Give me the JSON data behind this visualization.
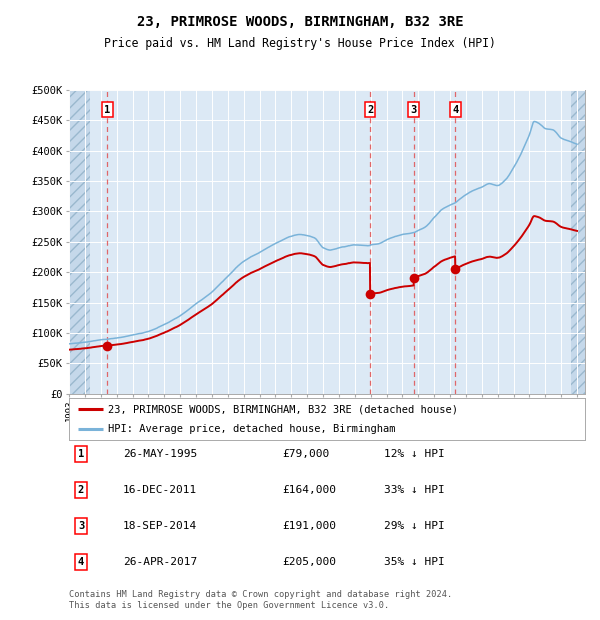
{
  "title": "23, PRIMROSE WOODS, BIRMINGHAM, B32 3RE",
  "subtitle": "Price paid vs. HM Land Registry's House Price Index (HPI)",
  "plot_bg_color": "#dce9f5",
  "hpi_line_color": "#7ab3d9",
  "price_line_color": "#cc0000",
  "marker_color": "#cc0000",
  "dashed_line_color": "#e05050",
  "sale_events": [
    {
      "label": "1",
      "date_str": "26-MAY-1995",
      "year": 1995.4,
      "price": 79000,
      "note": "12% ↓ HPI"
    },
    {
      "label": "2",
      "date_str": "16-DEC-2011",
      "year": 2011.96,
      "price": 164000,
      "note": "33% ↓ HPI"
    },
    {
      "label": "3",
      "date_str": "18-SEP-2014",
      "year": 2014.71,
      "price": 191000,
      "note": "29% ↓ HPI"
    },
    {
      "label": "4",
      "date_str": "26-APR-2017",
      "year": 2017.32,
      "price": 205000,
      "note": "35% ↓ HPI"
    }
  ],
  "ylabel_ticks": [
    0,
    50000,
    100000,
    150000,
    200000,
    250000,
    300000,
    350000,
    400000,
    450000,
    500000
  ],
  "ylabel_labels": [
    "£0",
    "£50K",
    "£100K",
    "£150K",
    "£200K",
    "£250K",
    "£300K",
    "£350K",
    "£400K",
    "£450K",
    "£500K"
  ],
  "xmin": 1993.0,
  "xmax": 2025.5,
  "ymin": 0,
  "ymax": 500000,
  "legend1": "23, PRIMROSE WOODS, BIRMINGHAM, B32 3RE (detached house)",
  "legend2": "HPI: Average price, detached house, Birmingham",
  "footnote": "Contains HM Land Registry data © Crown copyright and database right 2024.\nThis data is licensed under the Open Government Licence v3.0.",
  "grid_color": "#ffffff",
  "hatch_fc": "#c5d8ea"
}
